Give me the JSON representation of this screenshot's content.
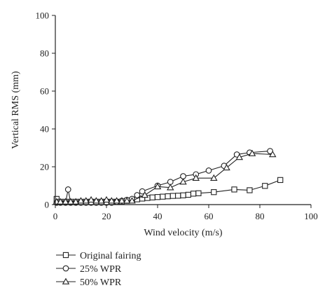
{
  "chart_data": {
    "type": "line",
    "xlabel": "Wind velocity (m/s)",
    "ylabel": "Vertical RMS (mm)",
    "xlim": [
      0,
      100
    ],
    "ylim": [
      0,
      100
    ],
    "xticks": [
      "0",
      "20",
      "40",
      "60",
      "80",
      "100"
    ],
    "yticks": [
      "0",
      "20",
      "40",
      "60",
      "80",
      "100"
    ],
    "grid": false,
    "legend_position": "below-left",
    "series": [
      {
        "name": "Original fairing",
        "marker": "square",
        "x": [
          0.5,
          2,
          4,
          6,
          8,
          10,
          12,
          14,
          16,
          18,
          20,
          22,
          24,
          26,
          28,
          30,
          32,
          34,
          36,
          38,
          40,
          42,
          44,
          46,
          48,
          50,
          52,
          54,
          56,
          62,
          70,
          76,
          82,
          88
        ],
        "y": [
          3,
          1.5,
          1.5,
          1.5,
          1.5,
          1.5,
          1.5,
          1.5,
          1.5,
          1.5,
          1.5,
          1.5,
          1.5,
          1.5,
          2,
          2.3,
          2.8,
          3.2,
          3.5,
          3.8,
          4,
          4.2,
          4.4,
          4.6,
          4.7,
          4.9,
          5.2,
          5.8,
          6,
          6.6,
          8,
          7.6,
          9.9,
          13
        ]
      },
      {
        "name": "25% WPR",
        "marker": "circle",
        "x": [
          0.5,
          2,
          4,
          5,
          6,
          8,
          10,
          12,
          14,
          16,
          18,
          20,
          22,
          24,
          26,
          28,
          30,
          32,
          34,
          40,
          45,
          50,
          55,
          60,
          66,
          71,
          76,
          84
        ],
        "y": [
          1,
          1,
          1,
          8,
          1,
          1,
          1,
          1,
          1,
          1,
          1,
          1,
          1,
          1.5,
          2,
          2.5,
          3,
          5,
          7,
          10,
          12,
          15,
          16,
          18,
          20.5,
          26.5,
          27.5,
          28.3
        ]
      },
      {
        "name": "50% WPR",
        "marker": "triangle",
        "x": [
          0.5,
          2,
          4,
          6,
          8,
          10,
          12,
          14,
          16,
          18,
          20,
          22,
          24,
          26,
          28,
          30,
          35,
          40,
          45,
          50,
          55,
          62,
          67,
          72,
          77,
          85
        ],
        "y": [
          1.5,
          1.5,
          1.5,
          1.5,
          1.5,
          2,
          2,
          2.5,
          2,
          2,
          2.5,
          2,
          2,
          2,
          2,
          2,
          5,
          9.5,
          9,
          12,
          14,
          14,
          19.5,
          25,
          27,
          26.5
        ]
      }
    ]
  }
}
